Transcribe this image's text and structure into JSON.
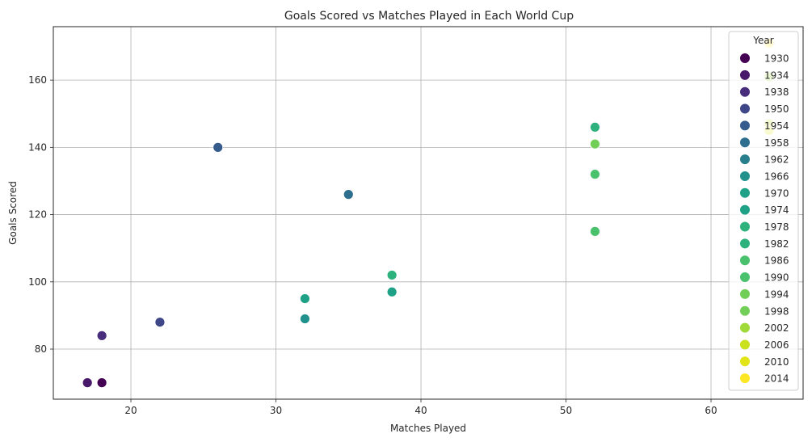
{
  "chart_data": {
    "type": "scatter",
    "title": "Goals Scored vs Matches Played in Each World Cup",
    "xlabel": "Matches Played",
    "ylabel": "Goals Scored",
    "xlim": [
      14.65,
      66.35
    ],
    "ylim": [
      65.1,
      175.9
    ],
    "x_ticks": [
      20,
      30,
      40,
      50,
      60
    ],
    "y_ticks": [
      80,
      100,
      120,
      140,
      160
    ],
    "grid": true,
    "legend": {
      "title": "Year",
      "placement": "top-right"
    },
    "colormap": "viridis",
    "series": [
      {
        "name": "1930",
        "color": "#440154",
        "x": 18,
        "y": 70
      },
      {
        "name": "1934",
        "color": "#48186a",
        "x": 17,
        "y": 70
      },
      {
        "name": "1938",
        "color": "#472d7b",
        "x": 18,
        "y": 84
      },
      {
        "name": "1950",
        "color": "#3f4788",
        "x": 22,
        "y": 88
      },
      {
        "name": "1954",
        "color": "#365c8d",
        "x": 26,
        "y": 140
      },
      {
        "name": "1958",
        "color": "#2e6e8e",
        "x": 35,
        "y": 126
      },
      {
        "name": "1962",
        "color": "#277f8e",
        "x": 32,
        "y": 89
      },
      {
        "name": "1966",
        "color": "#21918c",
        "x": 32,
        "y": 89
      },
      {
        "name": "1970",
        "color": "#1fa187",
        "x": 32,
        "y": 95
      },
      {
        "name": "1974",
        "color": "#1fa187",
        "x": 38,
        "y": 97
      },
      {
        "name": "1978",
        "color": "#2db27d",
        "x": 38,
        "y": 102
      },
      {
        "name": "1982",
        "color": "#2db27d",
        "x": 52,
        "y": 146
      },
      {
        "name": "1986",
        "color": "#4ac16d",
        "x": 52,
        "y": 132
      },
      {
        "name": "1990",
        "color": "#4ac16d",
        "x": 52,
        "y": 115
      },
      {
        "name": "1994",
        "color": "#71cf57",
        "x": 52,
        "y": 141
      },
      {
        "name": "1998",
        "color": "#71cf57",
        "x": 64,
        "y": 171
      },
      {
        "name": "2002",
        "color": "#a0da39",
        "x": 64,
        "y": 161
      },
      {
        "name": "2006",
        "color": "#cae11f",
        "x": 64,
        "y": 147
      },
      {
        "name": "2010",
        "color": "#e2e418",
        "x": 64,
        "y": 145
      },
      {
        "name": "2014",
        "color": "#fde725",
        "x": 64,
        "y": 171
      }
    ],
    "legend_colors": [
      "#440154",
      "#48186a",
      "#472d7b",
      "#3f4788",
      "#365c8d",
      "#2e6e8e",
      "#277f8e",
      "#21918c",
      "#1fa187",
      "#1fa187",
      "#2db27d",
      "#2db27d",
      "#4ac16d",
      "#4ac16d",
      "#71cf57",
      "#71cf57",
      "#a0da39",
      "#cae11f",
      "#e2e418",
      "#fde725"
    ]
  }
}
